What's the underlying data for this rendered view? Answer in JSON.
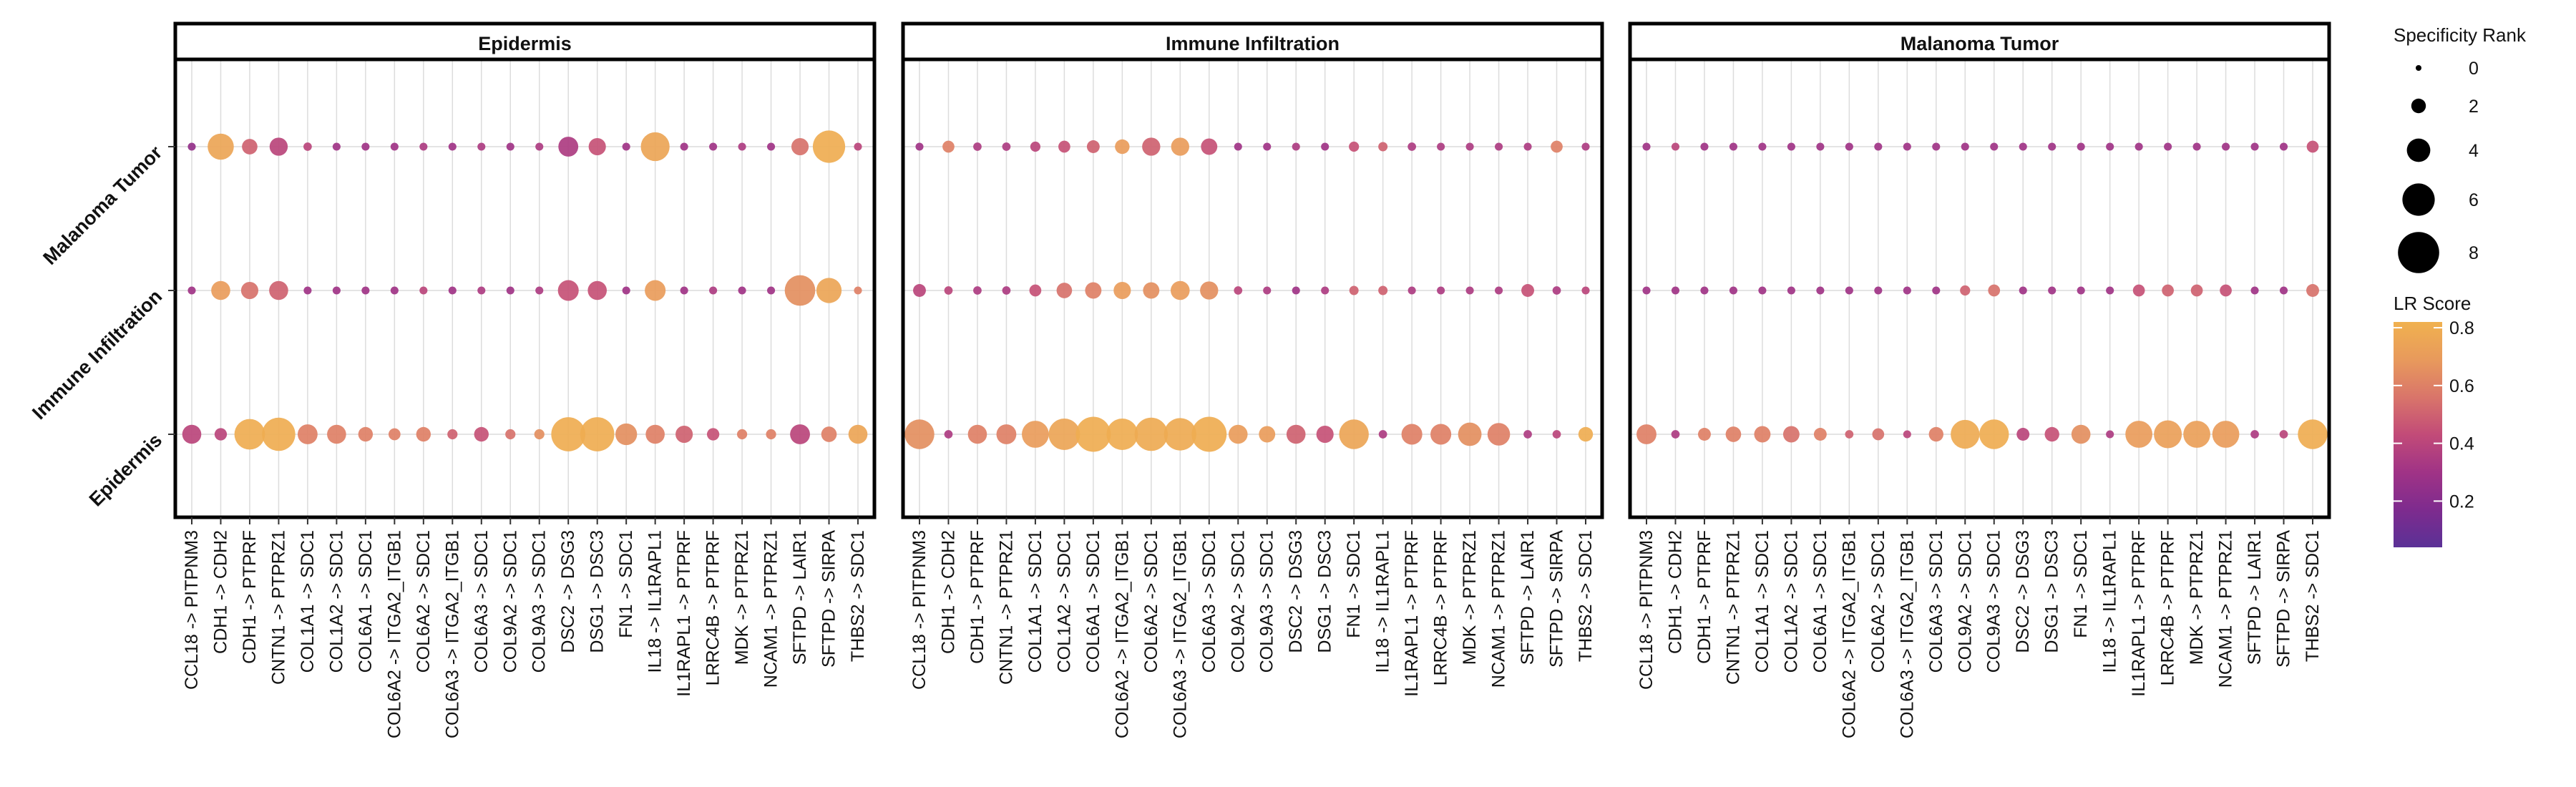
{
  "chart_data": {
    "type": "scatter",
    "subtype": "faceted dot plot",
    "facets": [
      "Epidermis",
      "Immune Infiltration",
      "Malanoma Tumor"
    ],
    "y_categories": [
      "Malanoma Tumor",
      "Immune Infiltration",
      "Epidermis"
    ],
    "x_categories": [
      "CCL18 -> PITPNM3",
      "CDH1 -> CDH2",
      "CDH1 -> PTPRF",
      "CNTN1 -> PTPRZ1",
      "COL1A1 -> SDC1",
      "COL1A2 -> SDC1",
      "COL6A1 -> SDC1",
      "COL6A2 -> ITGA2_ITGB1",
      "COL6A2 -> SDC1",
      "COL6A3 -> ITGA2_ITGB1",
      "COL6A3 -> SDC1",
      "COL9A2 -> SDC1",
      "COL9A3 -> SDC1",
      "DSC2 -> DSG3",
      "DSG1 -> DSC3",
      "FN1 -> SDC1",
      "IL18 -> IL1RAPL1",
      "IL1RAPL1 -> PTPRF",
      "LRRC4B -> PTPRF",
      "MDK -> PTPRZ1",
      "NCAM1 -> PTPRZ1",
      "SFTPD -> LAIR1",
      "SFTPD -> SIRPA",
      "THBS2 -> SDC1"
    ],
    "legend_size": {
      "title": "Specificity Rank",
      "breaks": [
        0,
        2,
        4,
        6,
        8
      ]
    },
    "legend_color": {
      "title": "LR Score",
      "ticks": [
        0.2,
        0.4,
        0.6,
        0.8
      ],
      "range": [
        0.04,
        0.82
      ],
      "palette": [
        "#5b3196",
        "#7e2b8e",
        "#a03386",
        "#c24b78",
        "#d9756a",
        "#e89a5c",
        "#f0b14f"
      ]
    },
    "series": [
      {
        "facet": "Epidermis",
        "rows": [
          {
            "name": "Malanoma Tumor",
            "size": [
              0.5,
              4.6,
              2.2,
              2.8,
              0.6,
              0.5,
              0.5,
              0.5,
              0.5,
              0.5,
              0.5,
              0.5,
              0.5,
              3.2,
              2.6,
              0.5,
              5.2,
              0.5,
              0.5,
              0.5,
              0.5,
              2.6,
              6.0,
              0.5
            ],
            "score": [
              0.25,
              0.75,
              0.5,
              0.4,
              0.4,
              0.3,
              0.3,
              0.3,
              0.35,
              0.3,
              0.35,
              0.3,
              0.35,
              0.35,
              0.45,
              0.3,
              0.75,
              0.3,
              0.3,
              0.35,
              0.3,
              0.55,
              0.8,
              0.4
            ]
          },
          {
            "name": "Immune Infiltration",
            "size": [
              0.5,
              3.0,
              2.6,
              3.0,
              0.5,
              0.5,
              0.5,
              0.5,
              0.5,
              0.5,
              0.5,
              0.5,
              0.5,
              3.4,
              3.0,
              0.5,
              3.4,
              0.5,
              0.5,
              0.5,
              0.5,
              5.6,
              4.4,
              0.5
            ],
            "score": [
              0.3,
              0.7,
              0.55,
              0.5,
              0.3,
              0.3,
              0.3,
              0.3,
              0.4,
              0.3,
              0.35,
              0.3,
              0.35,
              0.45,
              0.45,
              0.3,
              0.7,
              0.3,
              0.35,
              0.3,
              0.3,
              0.65,
              0.75,
              0.6
            ]
          },
          {
            "name": "Epidermis",
            "size": [
              3.0,
              1.5,
              5.6,
              6.2,
              3.2,
              3.0,
              2.0,
              1.4,
              2.0,
              1.0,
              2.0,
              1.0,
              1.0,
              6.4,
              6.4,
              3.6,
              3.0,
              2.6,
              1.5,
              1.0,
              1.0,
              3.2,
              2.2,
              3.0
            ],
            "score": [
              0.4,
              0.4,
              0.8,
              0.8,
              0.6,
              0.6,
              0.6,
              0.6,
              0.6,
              0.5,
              0.45,
              0.55,
              0.65,
              0.8,
              0.8,
              0.65,
              0.6,
              0.5,
              0.45,
              0.6,
              0.6,
              0.4,
              0.6,
              0.75
            ]
          }
        ]
      },
      {
        "facet": "Immune Infiltration",
        "rows": [
          {
            "name": "Malanoma Tumor",
            "size": [
              0.5,
              1.4,
              0.6,
              0.6,
              1.0,
              1.4,
              1.6,
              2.0,
              2.8,
              2.8,
              2.4,
              0.5,
              0.5,
              0.5,
              0.5,
              1.0,
              0.8,
              0.6,
              0.5,
              0.5,
              0.5,
              0.5,
              1.4,
              0.5
            ],
            "score": [
              0.3,
              0.6,
              0.35,
              0.35,
              0.4,
              0.45,
              0.5,
              0.7,
              0.5,
              0.7,
              0.45,
              0.3,
              0.3,
              0.35,
              0.3,
              0.45,
              0.5,
              0.35,
              0.35,
              0.35,
              0.35,
              0.35,
              0.6,
              0.35
            ]
          },
          {
            "name": "Immune Infiltration",
            "size": [
              1.6,
              0.6,
              0.6,
              0.6,
              1.4,
              2.2,
              2.4,
              2.6,
              2.4,
              3.0,
              2.8,
              0.6,
              0.5,
              0.5,
              0.5,
              0.8,
              0.8,
              0.5,
              0.5,
              0.5,
              0.5,
              1.6,
              0.6,
              0.5
            ],
            "score": [
              0.4,
              0.4,
              0.35,
              0.35,
              0.45,
              0.55,
              0.6,
              0.7,
              0.65,
              0.7,
              0.65,
              0.4,
              0.35,
              0.3,
              0.35,
              0.5,
              0.5,
              0.35,
              0.35,
              0.35,
              0.35,
              0.45,
              0.35,
              0.4
            ]
          },
          {
            "name": "Epidermis",
            "size": [
              5.4,
              0.6,
              3.0,
              3.2,
              4.8,
              5.8,
              6.6,
              5.8,
              6.2,
              6.0,
              6.6,
              3.0,
              2.4,
              3.0,
              2.6,
              5.4,
              0.6,
              3.4,
              3.4,
              4.0,
              3.8,
              0.6,
              0.6,
              2.0
            ],
            "score": [
              0.65,
              0.35,
              0.6,
              0.6,
              0.7,
              0.75,
              0.8,
              0.8,
              0.78,
              0.78,
              0.8,
              0.7,
              0.7,
              0.5,
              0.45,
              0.75,
              0.35,
              0.6,
              0.6,
              0.65,
              0.6,
              0.35,
              0.4,
              0.8
            ]
          }
        ]
      },
      {
        "facet": "Malanoma Tumor",
        "rows": [
          {
            "name": "Malanoma Tumor",
            "size": [
              0.5,
              0.5,
              0.5,
              0.5,
              0.5,
              0.5,
              0.5,
              0.5,
              0.5,
              0.5,
              0.5,
              0.5,
              0.5,
              0.5,
              0.5,
              0.5,
              0.5,
              0.5,
              0.5,
              0.5,
              0.5,
              0.5,
              0.5,
              1.4
            ],
            "score": [
              0.3,
              0.4,
              0.3,
              0.3,
              0.3,
              0.3,
              0.3,
              0.3,
              0.3,
              0.3,
              0.3,
              0.3,
              0.3,
              0.3,
              0.3,
              0.3,
              0.3,
              0.3,
              0.3,
              0.3,
              0.3,
              0.3,
              0.3,
              0.45
            ]
          },
          {
            "name": "Immune Infiltration",
            "size": [
              0.5,
              0.5,
              0.5,
              0.5,
              0.5,
              0.5,
              0.5,
              0.5,
              0.5,
              0.5,
              0.5,
              1.0,
              1.4,
              0.5,
              0.5,
              0.5,
              0.5,
              1.4,
              1.4,
              1.4,
              1.4,
              0.5,
              0.5,
              1.6
            ],
            "score": [
              0.3,
              0.3,
              0.3,
              0.3,
              0.3,
              0.3,
              0.3,
              0.3,
              0.3,
              0.3,
              0.3,
              0.5,
              0.55,
              0.3,
              0.3,
              0.3,
              0.3,
              0.45,
              0.5,
              0.5,
              0.45,
              0.3,
              0.3,
              0.55
            ]
          },
          {
            "name": "Epidermis",
            "size": [
              3.2,
              0.6,
              1.6,
              2.2,
              2.4,
              2.4,
              1.6,
              0.6,
              1.4,
              0.5,
              2.0,
              5.2,
              5.4,
              1.6,
              2.0,
              3.0,
              0.5,
              4.8,
              5.0,
              4.8,
              4.8,
              0.6,
              0.6,
              5.4
            ],
            "score": [
              0.6,
              0.35,
              0.6,
              0.6,
              0.6,
              0.55,
              0.6,
              0.5,
              0.55,
              0.4,
              0.6,
              0.78,
              0.8,
              0.4,
              0.45,
              0.65,
              0.35,
              0.7,
              0.72,
              0.72,
              0.7,
              0.35,
              0.4,
              0.8
            ]
          }
        ]
      }
    ]
  }
}
